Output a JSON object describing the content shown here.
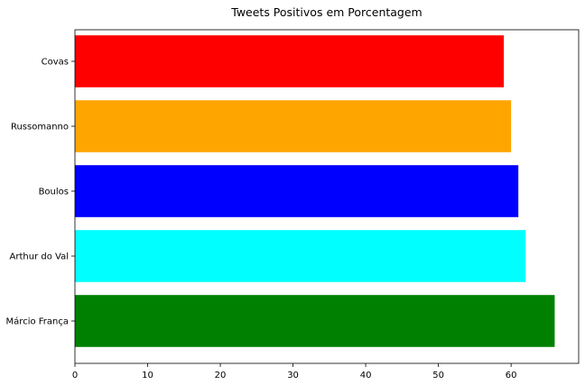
{
  "chart_data": {
    "type": "bar",
    "orientation": "horizontal",
    "title": "Tweets Positivos em Porcentagem",
    "xlabel": "",
    "ylabel": "",
    "categories": [
      "Covas",
      "Russomanno",
      "Boulos",
      "Arthur do Val",
      "Márcio França"
    ],
    "values": [
      59,
      60,
      61,
      62,
      66
    ],
    "colors": [
      "#ff0000",
      "#ffa500",
      "#0000ff",
      "#00ffff",
      "#008000"
    ],
    "xlim": [
      0,
      69.3
    ],
    "xticks": [
      0,
      10,
      20,
      30,
      40,
      50,
      60
    ],
    "grid": false
  }
}
